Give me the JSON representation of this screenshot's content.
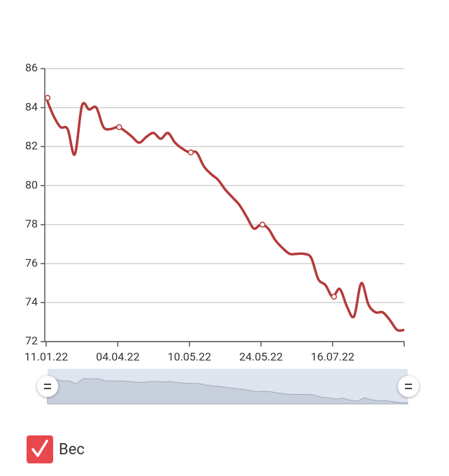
{
  "chart_data": {
    "type": "line",
    "categories": [
      "11.01.22",
      null,
      null,
      null,
      null,
      null,
      null,
      null,
      null,
      null,
      "04.04.22",
      null,
      null,
      null,
      null,
      null,
      null,
      null,
      null,
      null,
      "10.05.22",
      null,
      null,
      null,
      null,
      null,
      null,
      null,
      null,
      null,
      "24.05.22",
      null,
      null,
      null,
      null,
      null,
      null,
      null,
      null,
      null,
      "16.07.22",
      null,
      null,
      null,
      null,
      null,
      null,
      null,
      null,
      null,
      null
    ],
    "series": [
      {
        "name": "Вес",
        "color": "#b43a3a",
        "values": [
          84.5,
          83.6,
          83.0,
          82.9,
          81.6,
          84.1,
          83.9,
          84.0,
          83.0,
          82.9,
          83.0,
          82.8,
          82.5,
          82.2,
          82.5,
          82.7,
          82.4,
          82.7,
          82.2,
          81.9,
          81.7,
          81.7,
          81.0,
          80.6,
          80.3,
          79.8,
          79.4,
          79.0,
          78.4,
          77.8,
          78.0,
          77.8,
          77.2,
          76.8,
          76.5,
          76.5,
          76.5,
          76.3,
          75.2,
          74.9,
          74.3,
          74.7,
          73.8,
          73.3,
          75.0,
          73.9,
          73.5,
          73.5,
          73.1,
          72.6,
          72.6
        ]
      }
    ],
    "ylim": [
      72,
      86
    ],
    "yticks": [
      72,
      74,
      76,
      78,
      80,
      82,
      84,
      86
    ],
    "grid": true,
    "legend": "bottom-left"
  }
}
